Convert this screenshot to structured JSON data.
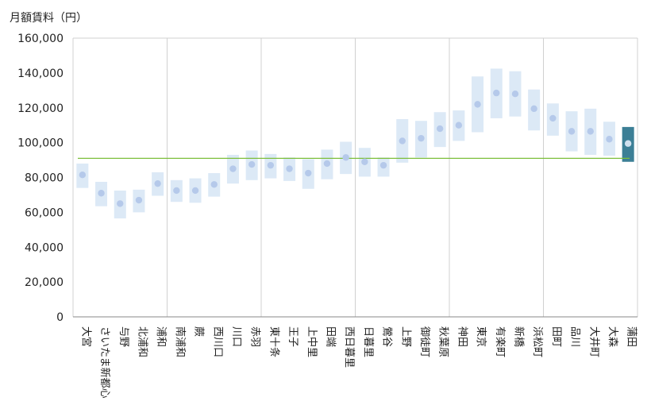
{
  "chart_data": {
    "type": "range",
    "ylabel": "月額賃料（円）",
    "ylim": [
      0,
      160000
    ],
    "yticks": [
      0,
      20000,
      40000,
      60000,
      80000,
      100000,
      120000,
      140000,
      160000
    ],
    "ytick_labels": [
      "0",
      "20,000",
      "40,000",
      "60,000",
      "80,000",
      "100,000",
      "120,000",
      "140,000",
      "160,000"
    ],
    "reference_line": 91000,
    "group_separators_after": [
      4,
      9,
      14,
      19,
      24
    ],
    "colors": {
      "band": "#dce9f6",
      "point": "#b5c9ea",
      "highlight_band": "#3c7f96",
      "highlight_point": "#cfe0ee",
      "reference": "#7cbf3a",
      "grid": "#d0d0d0",
      "axis": "#888888"
    },
    "stations": [
      {
        "name": "大宮",
        "low": 74000,
        "high": 88000,
        "value": 81500
      },
      {
        "name": "さいたま新都心",
        "low": 63500,
        "high": 77500,
        "value": 71000
      },
      {
        "name": "与野",
        "low": 56500,
        "high": 72500,
        "value": 65000
      },
      {
        "name": "北浦和",
        "low": 60000,
        "high": 73000,
        "value": 67000
      },
      {
        "name": "浦和",
        "low": 69500,
        "high": 83000,
        "value": 76500
      },
      {
        "name": "南浦和",
        "low": 66000,
        "high": 78500,
        "value": 72500
      },
      {
        "name": "蕨",
        "low": 65500,
        "high": 79500,
        "value": 72500
      },
      {
        "name": "西川口",
        "low": 69000,
        "high": 82500,
        "value": 76000
      },
      {
        "name": "川口",
        "low": 76500,
        "high": 93000,
        "value": 85000
      },
      {
        "name": "赤羽",
        "low": 78500,
        "high": 95500,
        "value": 87500
      },
      {
        "name": "東十条",
        "low": 79500,
        "high": 93500,
        "value": 87000
      },
      {
        "name": "王子",
        "low": 78000,
        "high": 91500,
        "value": 85000
      },
      {
        "name": "上中里",
        "low": 73500,
        "high": 90500,
        "value": 82500
      },
      {
        "name": "田端",
        "low": 79000,
        "high": 96000,
        "value": 88000
      },
      {
        "name": "西日暮里",
        "low": 82000,
        "high": 100500,
        "value": 91500
      },
      {
        "name": "日暮里",
        "low": 80500,
        "high": 97000,
        "value": 89000
      },
      {
        "name": "鶯谷",
        "low": 80500,
        "high": 91500,
        "value": 87000
      },
      {
        "name": "上野",
        "low": 88500,
        "high": 113500,
        "value": 101000
      },
      {
        "name": "御徒町",
        "low": 91500,
        "high": 112500,
        "value": 102500
      },
      {
        "name": "秋葉原",
        "low": 97500,
        "high": 117500,
        "value": 108000
      },
      {
        "name": "神田",
        "low": 101000,
        "high": 118500,
        "value": 110000
      },
      {
        "name": "東京",
        "low": 106000,
        "high": 138000,
        "value": 122000
      },
      {
        "name": "有楽町",
        "low": 114000,
        "high": 142500,
        "value": 128500
      },
      {
        "name": "新橋",
        "low": 115000,
        "high": 141000,
        "value": 128000
      },
      {
        "name": "浜松町",
        "low": 107000,
        "high": 130500,
        "value": 119500
      },
      {
        "name": "田町",
        "low": 104000,
        "high": 122500,
        "value": 114000
      },
      {
        "name": "品川",
        "low": 95000,
        "high": 118000,
        "value": 106500
      },
      {
        "name": "大井町",
        "low": 93000,
        "high": 119500,
        "value": 106500
      },
      {
        "name": "大森",
        "low": 92500,
        "high": 112000,
        "value": 102000
      },
      {
        "name": "蒲田",
        "low": 89000,
        "high": 109000,
        "value": 99500,
        "highlight": true
      }
    ]
  }
}
